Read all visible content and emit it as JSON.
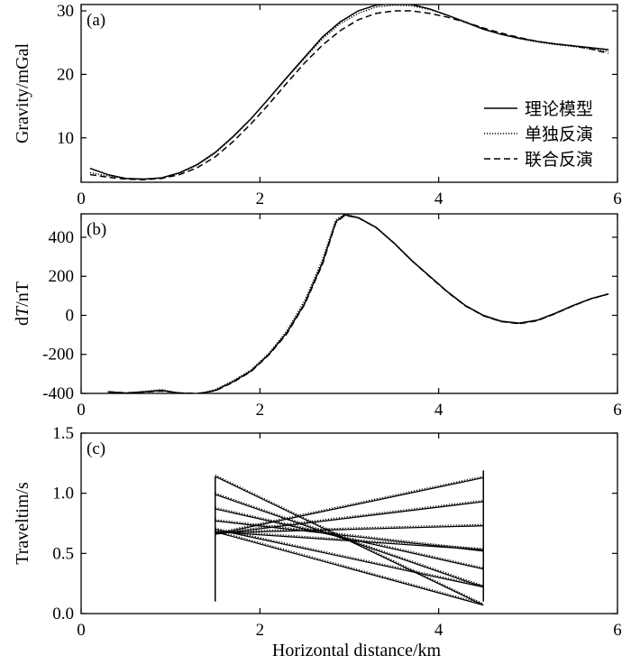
{
  "chart_data": [
    {
      "panel": "(a)",
      "type": "line",
      "ylabel": "Gravity/mGal",
      "xlabel": "",
      "xlim": [
        0,
        6
      ],
      "ylim": [
        3,
        31
      ],
      "xticks": [
        0,
        2,
        4,
        6
      ],
      "yticks": [
        10,
        20,
        30
      ],
      "legend": {
        "position": "right",
        "entries": [
          "理论模型",
          "单独反演",
          "联合反演"
        ]
      },
      "series": [
        {
          "name": "理论模型",
          "style": "solid",
          "x": [
            0.1,
            0.3,
            0.5,
            0.7,
            0.9,
            1.1,
            1.3,
            1.5,
            1.7,
            1.9,
            2.1,
            2.3,
            2.5,
            2.7,
            2.9,
            3.1,
            3.3,
            3.5,
            3.7,
            3.9,
            4.1,
            4.3,
            4.5,
            4.7,
            4.9,
            5.1,
            5.3,
            5.5,
            5.7,
            5.9
          ],
          "y": [
            5.2,
            4.2,
            3.6,
            3.5,
            3.7,
            4.5,
            5.8,
            7.7,
            10.2,
            13.0,
            16.2,
            19.5,
            22.7,
            25.9,
            28.3,
            30.0,
            30.9,
            31.2,
            31.0,
            30.3,
            29.3,
            28.2,
            27.1,
            26.3,
            25.7,
            25.2,
            24.8,
            24.5,
            24.2,
            23.9
          ]
        },
        {
          "name": "单独反演",
          "style": "dotted",
          "x": [
            0.1,
            0.3,
            0.5,
            0.7,
            0.9,
            1.1,
            1.3,
            1.5,
            1.7,
            1.9,
            2.1,
            2.3,
            2.5,
            2.7,
            2.9,
            3.1,
            3.3,
            3.5,
            3.7,
            3.9,
            4.1,
            4.3,
            4.5,
            4.7,
            4.9,
            5.1,
            5.3,
            5.5,
            5.7,
            5.9
          ],
          "y": [
            4.5,
            4.0,
            3.6,
            3.5,
            3.7,
            4.4,
            5.7,
            7.6,
            10.1,
            13.0,
            16.2,
            19.4,
            22.5,
            25.6,
            28.0,
            29.6,
            30.6,
            30.9,
            30.8,
            30.2,
            29.3,
            28.3,
            27.2,
            26.3,
            25.6,
            25.1,
            24.7,
            24.4,
            24.0,
            23.6
          ]
        },
        {
          "name": "联合反演",
          "style": "dashed",
          "x": [
            0.1,
            0.3,
            0.5,
            0.7,
            0.9,
            1.1,
            1.3,
            1.5,
            1.7,
            1.9,
            2.1,
            2.3,
            2.5,
            2.7,
            2.9,
            3.1,
            3.3,
            3.5,
            3.7,
            3.9,
            4.1,
            4.3,
            4.5,
            4.7,
            4.9,
            5.1,
            5.3,
            5.5,
            5.7,
            5.9
          ],
          "y": [
            4.2,
            3.8,
            3.5,
            3.4,
            3.6,
            4.2,
            5.3,
            7.0,
            9.4,
            12.2,
            15.3,
            18.6,
            21.8,
            24.6,
            26.9,
            28.6,
            29.6,
            30.0,
            30.0,
            29.6,
            29.0,
            28.2,
            27.3,
            26.5,
            25.8,
            25.2,
            24.8,
            24.5,
            24.0,
            23.3
          ]
        }
      ]
    },
    {
      "panel": "(b)",
      "type": "line",
      "ylabel_prefix": "d",
      "ylabel_italic": "T",
      "ylabel_suffix": "/nT",
      "xlabel": "",
      "xlim": [
        0,
        6
      ],
      "ylim": [
        -400,
        520
      ],
      "xticks": [
        0,
        2,
        4,
        6
      ],
      "yticks": [
        -400,
        -200,
        0,
        200,
        400
      ],
      "ytick_labels": [
        "-400",
        "-200",
        "0",
        "200",
        "400"
      ],
      "series": [
        {
          "style": "solid",
          "x": [
            0.3,
            0.5,
            0.7,
            0.9,
            1.1,
            1.3,
            1.5,
            1.7,
            1.9,
            2.1,
            2.3,
            2.5,
            2.7,
            2.85,
            2.95,
            3.1,
            3.3,
            3.5,
            3.7,
            3.9,
            4.1,
            4.3,
            4.5,
            4.7,
            4.9,
            5.1,
            5.3,
            5.5,
            5.7,
            5.9
          ],
          "y": [
            -392,
            -398,
            -392,
            -385,
            -398,
            -402,
            -385,
            -340,
            -285,
            -200,
            -90,
            60,
            270,
            480,
            515,
            500,
            450,
            370,
            280,
            200,
            120,
            50,
            0,
            -30,
            -40,
            -25,
            10,
            50,
            85,
            110
          ]
        },
        {
          "style": "dotted",
          "x": [
            0.3,
            0.5,
            0.7,
            0.9,
            1.1,
            1.3,
            1.5,
            1.7,
            1.9,
            2.1,
            2.3,
            2.5,
            2.7,
            2.85,
            2.95,
            3.1,
            3.3,
            3.5,
            3.7,
            3.9,
            4.1,
            4.3,
            4.5,
            4.7,
            4.9,
            5.1,
            5.3,
            5.5,
            5.7,
            5.9
          ],
          "y": [
            -392,
            -400,
            -390,
            -380,
            -400,
            -405,
            -380,
            -335,
            -280,
            -195,
            -80,
            75,
            285,
            490,
            520,
            502,
            452,
            372,
            282,
            200,
            120,
            48,
            -3,
            -33,
            -42,
            -27,
            8,
            48,
            84,
            108
          ]
        },
        {
          "style": "dashed",
          "x": [
            0.3,
            0.5,
            0.7,
            0.9,
            1.1,
            1.3,
            1.5,
            1.7,
            1.9,
            2.1,
            2.3,
            2.5,
            2.7,
            2.85,
            2.95,
            3.1,
            3.3,
            3.5,
            3.7,
            3.9,
            4.1,
            4.3,
            4.5,
            4.7,
            4.9,
            5.1,
            5.3,
            5.5,
            5.7,
            5.9
          ],
          "y": [
            -392,
            -397,
            -393,
            -388,
            -397,
            -400,
            -387,
            -343,
            -288,
            -203,
            -95,
            55,
            262,
            475,
            512,
            500,
            450,
            370,
            280,
            198,
            118,
            48,
            -2,
            -32,
            -43,
            -28,
            8,
            48,
            84,
            110
          ]
        }
      ]
    },
    {
      "panel": "(c)",
      "type": "line",
      "ylabel": "Traveltim/s",
      "xlabel": "Horizontal distance/km",
      "xlim": [
        0,
        6
      ],
      "ylim": [
        0,
        1.5
      ],
      "xticks": [
        0,
        2,
        4,
        6
      ],
      "yticks": [
        0.0,
        0.5,
        1.0,
        1.5
      ],
      "ytick_labels": [
        "0.0",
        "0.5",
        "1.0",
        "1.5"
      ],
      "receiver_lines": [
        {
          "x": 1.5,
          "y0": 0.1,
          "y1": 1.14
        },
        {
          "x": 4.5,
          "y0": 0.1,
          "y1": 1.19
        }
      ],
      "rays": [
        {
          "x": [
            1.5,
            4.5
          ],
          "y": [
            1.14,
            0.07
          ]
        },
        {
          "x": [
            1.5,
            4.5
          ],
          "y": [
            0.99,
            0.22
          ]
        },
        {
          "x": [
            1.5,
            4.5
          ],
          "y": [
            0.87,
            0.37
          ]
        },
        {
          "x": [
            1.5,
            4.5
          ],
          "y": [
            0.77,
            0.52
          ]
        },
        {
          "x": [
            1.5,
            4.5
          ],
          "y": [
            0.7,
            0.22
          ]
        },
        {
          "x": [
            1.5,
            4.5
          ],
          "y": [
            0.68,
            0.07
          ]
        },
        {
          "x": [
            1.5,
            4.5
          ],
          "y": [
            0.66,
            1.13
          ]
        },
        {
          "x": [
            1.5,
            4.5
          ],
          "y": [
            0.66,
            0.93
          ]
        },
        {
          "x": [
            1.5,
            4.5
          ],
          "y": [
            0.67,
            0.73
          ]
        },
        {
          "x": [
            1.5,
            4.5
          ],
          "y": [
            0.68,
            0.53
          ]
        }
      ]
    }
  ]
}
